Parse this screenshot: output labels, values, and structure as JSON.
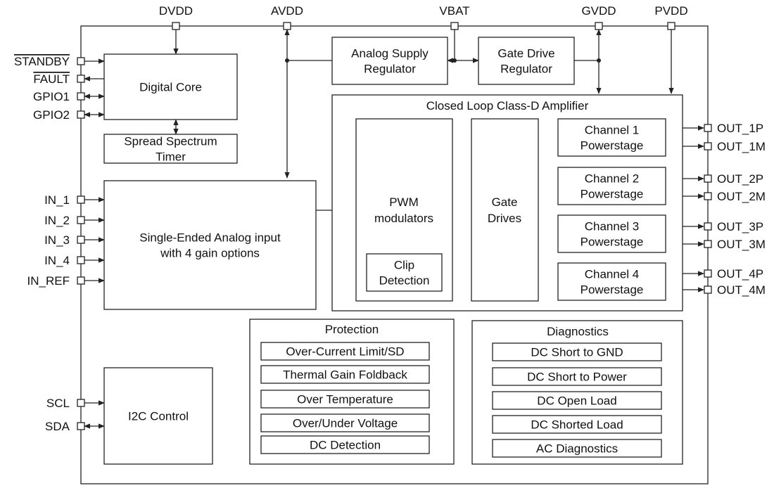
{
  "top_pins": [
    "DVDD",
    "AVDD",
    "VBAT",
    "GVDD",
    "PVDD"
  ],
  "left_pins": [
    "STANDBY",
    "FAULT",
    "GPIO1",
    "GPIO2",
    "IN_1",
    "IN_2",
    "IN_3",
    "IN_4",
    "IN_REF",
    "SCL",
    "SDA"
  ],
  "right_pins": [
    "OUT_1P",
    "OUT_1M",
    "OUT_2P",
    "OUT_2M",
    "OUT_3P",
    "OUT_3M",
    "OUT_4P",
    "OUT_4M"
  ],
  "overlined_pins": [
    "STANDBY",
    "FAULT"
  ],
  "blocks": {
    "digital_core": "Digital Core",
    "spread_spectrum": [
      "Spread Spectrum",
      "Timer"
    ],
    "analog_supply": [
      "Analog Supply",
      "Regulator"
    ],
    "gate_drive_reg": [
      "Gate Drive",
      "Regulator"
    ],
    "amplifier_title": "Closed Loop Class-D Amplifier",
    "pwm": [
      "PWM",
      "modulators"
    ],
    "clip": [
      "Clip",
      "Detection"
    ],
    "gate_drives": [
      "Gate",
      "Drives"
    ],
    "channels": [
      [
        "Channel 1",
        "Powerstage"
      ],
      [
        "Channel 2",
        "Powerstage"
      ],
      [
        "Channel 3",
        "Powerstage"
      ],
      [
        "Channel 4",
        "Powerstage"
      ]
    ],
    "analog_input": [
      "Single-Ended Analog input",
      "with 4 gain options"
    ],
    "i2c": "I2C Control"
  },
  "protection": {
    "title": "Protection",
    "items": [
      "Over-Current Limit/SD",
      "Thermal Gain Foldback",
      "Over Temperature",
      "Over/Under Voltage",
      "DC Detection"
    ]
  },
  "diagnostics": {
    "title": "Diagnostics",
    "items": [
      "DC Short to GND",
      "DC Short to Power",
      "DC Open Load",
      "DC Shorted Load",
      "AC Diagnostics"
    ]
  }
}
